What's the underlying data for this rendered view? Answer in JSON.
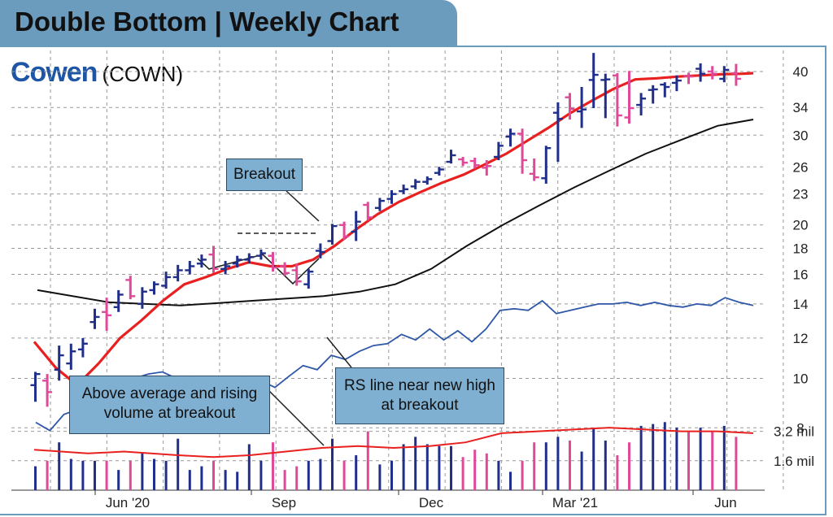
{
  "header": {
    "title": "Double Bottom | Weekly Chart"
  },
  "company": {
    "name": "Cowen",
    "ticker": "(COWN)"
  },
  "annotations": {
    "breakout": "Breakout",
    "rs_line": "RS line near new high at breakout",
    "volume": "Above average and rising volume at breakout"
  },
  "colors": {
    "accent": "#6b9bbd",
    "brand": "#1f55a5",
    "up_bar": "#1f2f8a",
    "down_bar": "#e0489a",
    "ma_10_week": "#e8201f",
    "ma_40_week": "#111111",
    "rs_line": "#2e57a8",
    "callout_fill": "#7fb0d2"
  },
  "chart_data": {
    "type": "bar",
    "price_scale": "log",
    "ylim": [
      7.2,
      44
    ],
    "price_ticks": [
      "40",
      "34",
      "30",
      "26",
      "23",
      "20",
      "18",
      "16",
      "14",
      "12",
      "10",
      "8"
    ],
    "volume_ticks": [
      "3.2 mil",
      "1.6 mil"
    ],
    "x_ticks": [
      "Jun '20",
      "Sep",
      "Dec",
      "Mar '21",
      "Jun"
    ],
    "grid": true,
    "weeks": 60,
    "price_bars": [
      {
        "o": 9.7,
        "h": 10.3,
        "l": 9.0,
        "c": 10.2,
        "dir": "up"
      },
      {
        "o": 9.9,
        "h": 10.2,
        "l": 8.8,
        "c": 9.4,
        "dir": "down"
      },
      {
        "o": 10.4,
        "h": 11.6,
        "l": 9.9,
        "c": 11.1,
        "dir": "up"
      },
      {
        "o": 10.7,
        "h": 11.7,
        "l": 10.4,
        "c": 11.3,
        "dir": "up"
      },
      {
        "o": 11.4,
        "h": 12.0,
        "l": 11.0,
        "c": 11.7,
        "dir": "up"
      },
      {
        "o": 12.9,
        "h": 13.7,
        "l": 12.5,
        "c": 13.2,
        "dir": "up"
      },
      {
        "o": 13.5,
        "h": 14.4,
        "l": 12.4,
        "c": 13.3,
        "dir": "down"
      },
      {
        "o": 13.8,
        "h": 14.9,
        "l": 13.5,
        "c": 14.6,
        "dir": "up"
      },
      {
        "o": 15.6,
        "h": 15.9,
        "l": 14.3,
        "c": 14.5,
        "dir": "down"
      },
      {
        "o": 14.0,
        "h": 15.1,
        "l": 13.7,
        "c": 14.8,
        "dir": "up"
      },
      {
        "o": 14.9,
        "h": 15.5,
        "l": 14.6,
        "c": 15.3,
        "dir": "up"
      },
      {
        "o": 15.2,
        "h": 16.2,
        "l": 15.0,
        "c": 15.8,
        "dir": "up"
      },
      {
        "o": 15.8,
        "h": 16.7,
        "l": 15.5,
        "c": 16.3,
        "dir": "up"
      },
      {
        "o": 16.3,
        "h": 17.0,
        "l": 16.0,
        "c": 16.6,
        "dir": "up"
      },
      {
        "o": 16.8,
        "h": 17.5,
        "l": 16.5,
        "c": 17.1,
        "dir": "up"
      },
      {
        "o": 17.5,
        "h": 18.2,
        "l": 16.1,
        "c": 16.4,
        "dir": "down"
      },
      {
        "o": 16.4,
        "h": 17.0,
        "l": 16.0,
        "c": 16.6,
        "dir": "up"
      },
      {
        "o": 16.8,
        "h": 17.4,
        "l": 16.5,
        "c": 17.1,
        "dir": "up"
      },
      {
        "o": 17.1,
        "h": 17.6,
        "l": 16.8,
        "c": 17.3,
        "dir": "up"
      },
      {
        "o": 17.4,
        "h": 17.9,
        "l": 17.1,
        "c": 17.6,
        "dir": "up"
      },
      {
        "o": 17.4,
        "h": 17.7,
        "l": 16.2,
        "c": 16.5,
        "dir": "down"
      },
      {
        "o": 16.6,
        "h": 16.9,
        "l": 15.9,
        "c": 16.1,
        "dir": "down"
      },
      {
        "o": 16.3,
        "h": 16.8,
        "l": 15.2,
        "c": 15.5,
        "dir": "down"
      },
      {
        "o": 15.3,
        "h": 16.4,
        "l": 15.0,
        "c": 16.2,
        "dir": "up"
      },
      {
        "o": 17.8,
        "h": 18.4,
        "l": 17.2,
        "c": 17.7,
        "dir": "up"
      },
      {
        "o": 18.6,
        "h": 20.1,
        "l": 18.3,
        "c": 19.9,
        "dir": "up"
      },
      {
        "o": 20.0,
        "h": 20.3,
        "l": 18.7,
        "c": 19.0,
        "dir": "down"
      },
      {
        "o": 19.4,
        "h": 21.3,
        "l": 18.6,
        "c": 20.3,
        "dir": "up"
      },
      {
        "o": 21.9,
        "h": 22.2,
        "l": 20.4,
        "c": 20.7,
        "dir": "down"
      },
      {
        "o": 21.6,
        "h": 22.6,
        "l": 21.3,
        "c": 22.3,
        "dir": "up"
      },
      {
        "o": 22.5,
        "h": 23.4,
        "l": 22.0,
        "c": 23.0,
        "dir": "up"
      },
      {
        "o": 23.3,
        "h": 24.0,
        "l": 23.0,
        "c": 23.5,
        "dir": "up"
      },
      {
        "o": 23.8,
        "h": 24.6,
        "l": 23.5,
        "c": 24.3,
        "dir": "up"
      },
      {
        "o": 24.3,
        "h": 24.9,
        "l": 24.0,
        "c": 24.6,
        "dir": "up"
      },
      {
        "o": 25.3,
        "h": 26.0,
        "l": 25.0,
        "c": 25.7,
        "dir": "up"
      },
      {
        "o": 26.6,
        "h": 28.1,
        "l": 26.4,
        "c": 27.4,
        "dir": "up"
      },
      {
        "o": 26.9,
        "h": 27.2,
        "l": 26.1,
        "c": 26.5,
        "dir": "down"
      },
      {
        "o": 26.7,
        "h": 27.1,
        "l": 25.8,
        "c": 26.2,
        "dir": "down"
      },
      {
        "o": 25.9,
        "h": 26.8,
        "l": 25.0,
        "c": 26.1,
        "dir": "down"
      },
      {
        "o": 27.2,
        "h": 29.1,
        "l": 26.8,
        "c": 28.6,
        "dir": "up"
      },
      {
        "o": 29.8,
        "h": 30.9,
        "l": 28.5,
        "c": 30.2,
        "dir": "up"
      },
      {
        "o": 30.2,
        "h": 30.9,
        "l": 25.2,
        "c": 26.8,
        "dir": "down"
      },
      {
        "o": 25.2,
        "h": 27.0,
        "l": 24.4,
        "c": 24.8,
        "dir": "down"
      },
      {
        "o": 24.7,
        "h": 28.6,
        "l": 24.1,
        "c": 28.3,
        "dir": "up"
      },
      {
        "o": 33.2,
        "h": 34.8,
        "l": 26.6,
        "c": 32.3,
        "dir": "up"
      },
      {
        "o": 35.6,
        "h": 36.3,
        "l": 32.2,
        "c": 33.8,
        "dir": "down"
      },
      {
        "o": 33.4,
        "h": 37.3,
        "l": 31.0,
        "c": 33.7,
        "dir": "up"
      },
      {
        "o": 38.5,
        "h": 43.5,
        "l": 33.9,
        "c": 39.4,
        "dir": "up"
      },
      {
        "o": 38.5,
        "h": 39.6,
        "l": 32.4,
        "c": 38.6,
        "dir": "up"
      },
      {
        "o": 39.3,
        "h": 39.7,
        "l": 31.2,
        "c": 32.8,
        "dir": "down"
      },
      {
        "o": 32.5,
        "h": 40.1,
        "l": 31.6,
        "c": 33.9,
        "dir": "down"
      },
      {
        "o": 34.4,
        "h": 36.3,
        "l": 32.8,
        "c": 35.4,
        "dir": "up"
      },
      {
        "o": 36.8,
        "h": 37.6,
        "l": 34.6,
        "c": 36.9,
        "dir": "up"
      },
      {
        "o": 37.7,
        "h": 38.1,
        "l": 35.6,
        "c": 37.3,
        "dir": "up"
      },
      {
        "o": 38.0,
        "h": 39.3,
        "l": 36.6,
        "c": 38.4,
        "dir": "up"
      },
      {
        "o": 39.2,
        "h": 39.8,
        "l": 37.8,
        "c": 39.1,
        "dir": "down"
      },
      {
        "o": 40.5,
        "h": 41.5,
        "l": 38.2,
        "c": 39.6,
        "dir": "up"
      },
      {
        "o": 40.0,
        "h": 41.0,
        "l": 38.6,
        "c": 39.6,
        "dir": "down"
      },
      {
        "o": 38.7,
        "h": 41.0,
        "l": 38.1,
        "c": 40.3,
        "dir": "up"
      },
      {
        "o": 39.7,
        "h": 41.4,
        "l": 37.5,
        "c": 38.7,
        "dir": "down"
      }
    ],
    "ma_10_week": [
      [
        0,
        11.8
      ],
      [
        2,
        10.5
      ],
      [
        4,
        9.7
      ],
      [
        6,
        10.7
      ],
      [
        8,
        12.0
      ],
      [
        10,
        13.0
      ],
      [
        12,
        14.2
      ],
      [
        14,
        15.3
      ],
      [
        16,
        15.8
      ],
      [
        18,
        16.4
      ],
      [
        20,
        16.9
      ],
      [
        22,
        16.6
      ],
      [
        24,
        16.6
      ],
      [
        26,
        17.1
      ],
      [
        28,
        18.2
      ],
      [
        30,
        19.6
      ],
      [
        32,
        21.0
      ],
      [
        34,
        22.2
      ],
      [
        36,
        23.2
      ],
      [
        38,
        24.2
      ],
      [
        40,
        25.1
      ],
      [
        42,
        26.3
      ],
      [
        44,
        27.6
      ],
      [
        46,
        29.3
      ],
      [
        48,
        31.1
      ],
      [
        50,
        33.2
      ],
      [
        52,
        35.1
      ],
      [
        54,
        37.0
      ],
      [
        56,
        38.6
      ],
      [
        58,
        38.8
      ],
      [
        60,
        39.1
      ],
      [
        62,
        39.3
      ],
      [
        64,
        39.5
      ],
      [
        66,
        39.6
      ],
      [
        67,
        39.7
      ]
    ],
    "ma_40_week": [
      [
        0,
        14.9
      ],
      [
        8,
        14.1
      ],
      [
        16,
        13.9
      ],
      [
        24,
        14.2
      ],
      [
        32,
        14.5
      ],
      [
        36,
        14.8
      ],
      [
        40,
        15.3
      ],
      [
        44,
        16.4
      ],
      [
        48,
        18.2
      ],
      [
        52,
        20.0
      ],
      [
        56,
        21.8
      ],
      [
        60,
        23.7
      ],
      [
        64,
        25.6
      ],
      [
        68,
        27.6
      ],
      [
        72,
        29.4
      ],
      [
        76,
        31.3
      ],
      [
        80,
        32.2
      ]
    ],
    "rs_line": [
      [
        0,
        8.2
      ],
      [
        2,
        7.9
      ],
      [
        4,
        8.5
      ],
      [
        6,
        8.7
      ],
      [
        8,
        9.2
      ],
      [
        10,
        9.5
      ],
      [
        12,
        9.6
      ],
      [
        14,
        10.0
      ],
      [
        16,
        10.2
      ],
      [
        18,
        10.3
      ],
      [
        20,
        10.0
      ],
      [
        22,
        10.1
      ],
      [
        24,
        10.0
      ],
      [
        26,
        10.1
      ],
      [
        28,
        9.9
      ],
      [
        30,
        10.1
      ],
      [
        32,
        9.9
      ],
      [
        34,
        9.6
      ],
      [
        36,
        10.1
      ],
      [
        38,
        10.6
      ],
      [
        40,
        10.4
      ],
      [
        42,
        11.1
      ],
      [
        44,
        10.9
      ],
      [
        46,
        11.3
      ],
      [
        48,
        11.6
      ],
      [
        50,
        11.7
      ],
      [
        52,
        12.2
      ],
      [
        54,
        11.9
      ],
      [
        56,
        12.5
      ],
      [
        58,
        11.9
      ],
      [
        60,
        12.4
      ],
      [
        62,
        11.8
      ],
      [
        64,
        12.5
      ],
      [
        66,
        13.6
      ],
      [
        68,
        13.7
      ],
      [
        70,
        13.6
      ],
      [
        72,
        14.2
      ],
      [
        74,
        13.4
      ],
      [
        76,
        13.6
      ],
      [
        78,
        13.8
      ],
      [
        80,
        14.0
      ],
      [
        82,
        14.0
      ],
      [
        84,
        14.1
      ],
      [
        86,
        13.9
      ],
      [
        88,
        14.1
      ],
      [
        90,
        13.9
      ],
      [
        92,
        13.8
      ],
      [
        94,
        14.0
      ],
      [
        96,
        13.9
      ],
      [
        98,
        14.4
      ],
      [
        100,
        14.1
      ],
      [
        102,
        13.9
      ]
    ],
    "volume_mil": [
      1.3,
      1.6,
      2.6,
      1.7,
      1.6,
      1.6,
      1.6,
      1.1,
      1.6,
      2.0,
      1.7,
      1.6,
      2.8,
      1.1,
      1.3,
      1.6,
      1.1,
      1.0,
      2.5,
      1.6,
      2.6,
      1.1,
      1.3,
      1.6,
      1.7,
      2.8,
      1.6,
      1.9,
      3.2,
      1.4,
      1.6,
      2.5,
      2.9,
      2.5,
      2.4,
      2.4,
      1.8,
      2.2,
      2.0,
      1.6,
      1.0,
      1.6,
      2.6,
      2.6,
      2.9,
      2.7,
      2.1,
      3.4,
      2.7,
      1.9,
      2.6,
      3.5,
      3.6,
      3.7,
      3.4,
      3.2,
      3.4,
      3.2,
      3.5,
      2.9
    ],
    "volume_avg_mil": [
      [
        0,
        2.2
      ],
      [
        6,
        2.0
      ],
      [
        10,
        2.1
      ],
      [
        16,
        1.9
      ],
      [
        20,
        1.8
      ],
      [
        24,
        1.9
      ],
      [
        28,
        2.1
      ],
      [
        32,
        2.3
      ],
      [
        36,
        2.4
      ],
      [
        40,
        2.3
      ],
      [
        44,
        2.4
      ],
      [
        48,
        2.6
      ],
      [
        52,
        3.1
      ],
      [
        56,
        3.2
      ],
      [
        60,
        3.3
      ],
      [
        64,
        3.4
      ],
      [
        68,
        3.3
      ],
      [
        72,
        3.2
      ],
      [
        76,
        3.2
      ],
      [
        80,
        3.1
      ]
    ],
    "volume_ylim": [
      0,
      4.2
    ]
  }
}
